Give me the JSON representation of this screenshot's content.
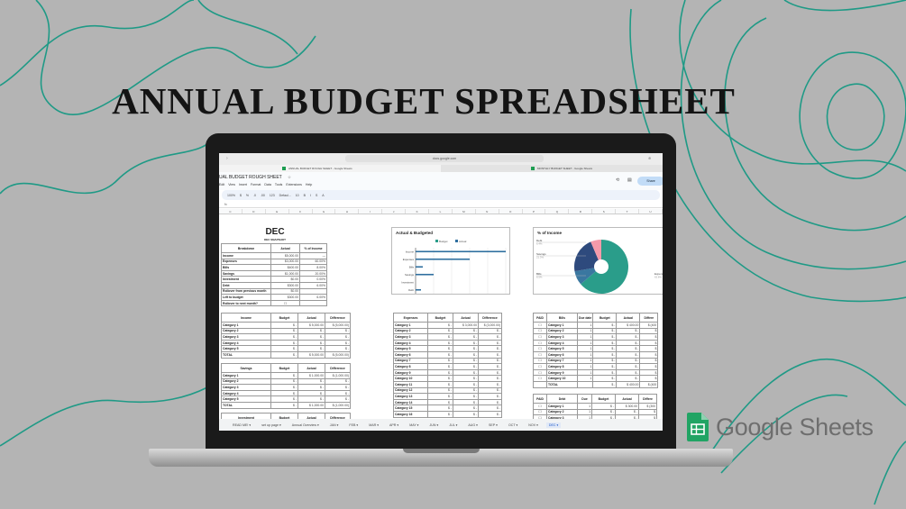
{
  "title": "ANNUAL BUDGET SPREADSHEET",
  "browser": {
    "url": "docs.google.com",
    "tabs": [
      "ANNUAL BUDGET ROUGH SHEET - Google Sheets",
      "MONTHLY BUDGET SHEET - Google Sheets"
    ]
  },
  "doc": {
    "title": "UAL BUDGET ROUGH SHEET",
    "menu": [
      "Edit",
      "View",
      "Insert",
      "Format",
      "Data",
      "Tools",
      "Extensions",
      "Help"
    ],
    "share_label": "Share",
    "toolbar": [
      "100%",
      "$",
      "%",
      ".0",
      ".00",
      "123",
      "Defaul...",
      "10",
      "B",
      "I",
      "S",
      "A"
    ],
    "columns": [
      "C",
      "D",
      "E",
      "F",
      "G",
      "H",
      "I",
      "J",
      "K",
      "L",
      "M",
      "N",
      "O",
      "P",
      "Q",
      "R",
      "S",
      "T",
      "U"
    ]
  },
  "sheet_tabs": [
    "READ ME!",
    "set up page",
    "Annual Overview",
    "JAN",
    "FEB",
    "MAR",
    "APR",
    "MAY",
    "JUN",
    "JUL",
    "AUG",
    "SEP",
    "OCT",
    "NOV",
    "DEC"
  ],
  "active_sheet": "DEC",
  "snapshot": {
    "month": "DEC",
    "subtitle": "DEC SNAPSHOT",
    "headers": [
      "Breakdown",
      "Actual",
      "% of Income"
    ],
    "rows": [
      [
        "Income",
        "$5,000.00",
        "—"
      ],
      [
        "Expenses",
        "$3,000.00",
        "60.00%"
      ],
      [
        "Bills",
        "$400.00",
        "8.00%"
      ],
      [
        "Savings",
        "$1,000.00",
        "20.00%"
      ],
      [
        "Investment",
        "$0.00",
        "0.00%"
      ],
      [
        "Debt",
        "$300.00",
        "6.00%"
      ],
      [
        "Rollover from previous month",
        "$0.00",
        ""
      ],
      [
        "Left to budget",
        "$300.00",
        "6.00%"
      ],
      [
        "Rollover to next month?",
        "☐",
        ""
      ]
    ]
  },
  "income": {
    "headers": [
      "Income",
      "Budget",
      "Actual",
      "Difference"
    ],
    "rows": [
      [
        "Category 1",
        "$ -",
        "$ 5,000.00",
        "$ (5,000.00)"
      ],
      [
        "Category 2",
        "$ -",
        "$ -",
        "$ -"
      ],
      [
        "Category 3",
        "$ -",
        "$ -",
        "$ -"
      ],
      [
        "Category 4",
        "$ -",
        "$ -",
        "$ -"
      ],
      [
        "Category 5",
        "$ -",
        "$ -",
        "$ -"
      ],
      [
        "TOTAL",
        "$ -",
        "$ 5,000.00",
        "$ (5,000.00)"
      ]
    ]
  },
  "savings": {
    "headers": [
      "Savings",
      "Budget",
      "Actual",
      "Difference"
    ],
    "rows": [
      [
        "Category 1",
        "$ -",
        "$ 1,000.00",
        "$ (1,000.00)"
      ],
      [
        "Category 2",
        "$ -",
        "$ -",
        "$ -"
      ],
      [
        "Category 3",
        "$ -",
        "$ -",
        "$ -"
      ],
      [
        "Category 4",
        "$ -",
        "$ -",
        "$ -"
      ],
      [
        "Category 5",
        "$ -",
        "$ -",
        "$ -"
      ],
      [
        "TOTAL",
        "$ -",
        "$ 1,000.00",
        "$ (1,000.00)"
      ]
    ]
  },
  "investment": {
    "headers": [
      "Investment",
      "Budget",
      "Actual",
      "Difference"
    ],
    "rows": []
  },
  "expenses": {
    "headers": [
      "Expenses",
      "Budget",
      "Actual",
      "Difference"
    ],
    "rows": [
      [
        "Category 1",
        "$ -",
        "$ 3,000.00",
        "$ (3,000.00)"
      ],
      [
        "Category 2",
        "$ -",
        "$ -",
        "$ -"
      ],
      [
        "Category 3",
        "$ -",
        "$ -",
        "$ -"
      ],
      [
        "Category 4",
        "$ -",
        "$ -",
        "$ -"
      ],
      [
        "Category 5",
        "$ -",
        "$ -",
        "$ -"
      ],
      [
        "Category 6",
        "$ -",
        "$ -",
        "$ -"
      ],
      [
        "Category 7",
        "$ -",
        "$ -",
        "$ -"
      ],
      [
        "Category 8",
        "$ -",
        "$ -",
        "$ -"
      ],
      [
        "Category 9",
        "$ -",
        "$ -",
        "$ -"
      ],
      [
        "Category 10",
        "$ -",
        "$ -",
        "$ -"
      ],
      [
        "Category 11",
        "$ -",
        "$ -",
        "$ -"
      ],
      [
        "Category 12",
        "$ -",
        "$ -",
        "$ -"
      ],
      [
        "Category 13",
        "$ -",
        "$ -",
        "$ -"
      ],
      [
        "Category 14",
        "$ -",
        "$ -",
        "$ -"
      ],
      [
        "Category 15",
        "$ -",
        "$ -",
        "$ -"
      ],
      [
        "Category 16",
        "$ -",
        "$ -",
        "$ -"
      ]
    ]
  },
  "bills": {
    "headers": [
      "PAID",
      "Bills",
      "Due date",
      "Budget",
      "Actual",
      "Differe"
    ],
    "rows": [
      [
        "☐",
        "Category 1",
        "1",
        "$ -",
        "$ 400.00",
        "$ (400"
      ],
      [
        "☐",
        "Category 2",
        "1",
        "$ -",
        "$ -",
        "$"
      ],
      [
        "☐",
        "Category 3",
        "1",
        "$ -",
        "$ -",
        "$"
      ],
      [
        "☐",
        "Category 4",
        "1",
        "$ -",
        "$ -",
        "$"
      ],
      [
        "☐",
        "Category 5",
        "1",
        "$ -",
        "$ -",
        "$"
      ],
      [
        "☐",
        "Category 6",
        "1",
        "$ -",
        "$ -",
        "$"
      ],
      [
        "☐",
        "Category 7",
        "1",
        "$ -",
        "$ -",
        "$"
      ],
      [
        "☐",
        "Category 8",
        "1",
        "$ -",
        "$ -",
        "$"
      ],
      [
        "☐",
        "Category 9",
        "1",
        "$ -",
        "$ -",
        "$"
      ],
      [
        "☐",
        "Category 10",
        "1",
        "$ -",
        "$ -",
        "$"
      ],
      [
        "",
        "TOTAL",
        "",
        "$ -",
        "$ 400.00",
        "$ (400"
      ]
    ]
  },
  "debt": {
    "headers": [
      "PAID",
      "Debt",
      "Due",
      "Budget",
      "Actual",
      "Differe"
    ],
    "rows": [
      [
        "☐",
        "Category 1",
        "1",
        "$ -",
        "$ 300.00",
        "$ (300"
      ],
      [
        "☐",
        "Category 2",
        "1",
        "$ -",
        "$ -",
        "$"
      ],
      [
        "☐",
        "Category 3",
        "1",
        "$ -",
        "$ -",
        "$"
      ]
    ]
  },
  "colors": {
    "teal": "#2a9d8a",
    "navy": "#2e4a7d",
    "blue": "#3a77a0",
    "pink": "#f49aaa",
    "bar": "#2f6f9f"
  },
  "chart_data": [
    {
      "type": "bar",
      "title": "Actual & Budgeted",
      "orientation": "horizontal",
      "categories": [
        "Income",
        "Expenses",
        "Bills",
        "Savings",
        "Investment",
        "Debt"
      ],
      "series": [
        {
          "name": "Budget",
          "values": [
            0,
            0,
            0,
            0,
            0,
            0
          ],
          "color": "#2a9d8a"
        },
        {
          "name": "Actual",
          "values": [
            5000,
            3000,
            400,
            1000,
            0,
            300
          ],
          "color": "#2f6f9f"
        }
      ],
      "xlim": [
        0,
        5000
      ],
      "xticks": [
        "$0",
        "$1,000",
        "$2,000",
        "$3,000",
        "$4,000",
        "$5,000"
      ],
      "legend": "top",
      "grid": true
    },
    {
      "type": "pie",
      "title": "% of Income",
      "donut": true,
      "slices": [
        {
          "label": "Expenses",
          "value": 63.8,
          "pct": "63.8%",
          "color": "#2a9d8a"
        },
        {
          "label": "Bills",
          "value": 8.5,
          "pct": "8.5%",
          "color": "#3a77a0"
        },
        {
          "label": "Savings",
          "value": 21.3,
          "pct": "21.3%",
          "color": "#2e4a7d"
        },
        {
          "label": "Debt",
          "value": 6.4,
          "pct": "6.4%",
          "color": "#f49aaa"
        }
      ]
    }
  ],
  "logo": {
    "text": "Google Sheets"
  }
}
